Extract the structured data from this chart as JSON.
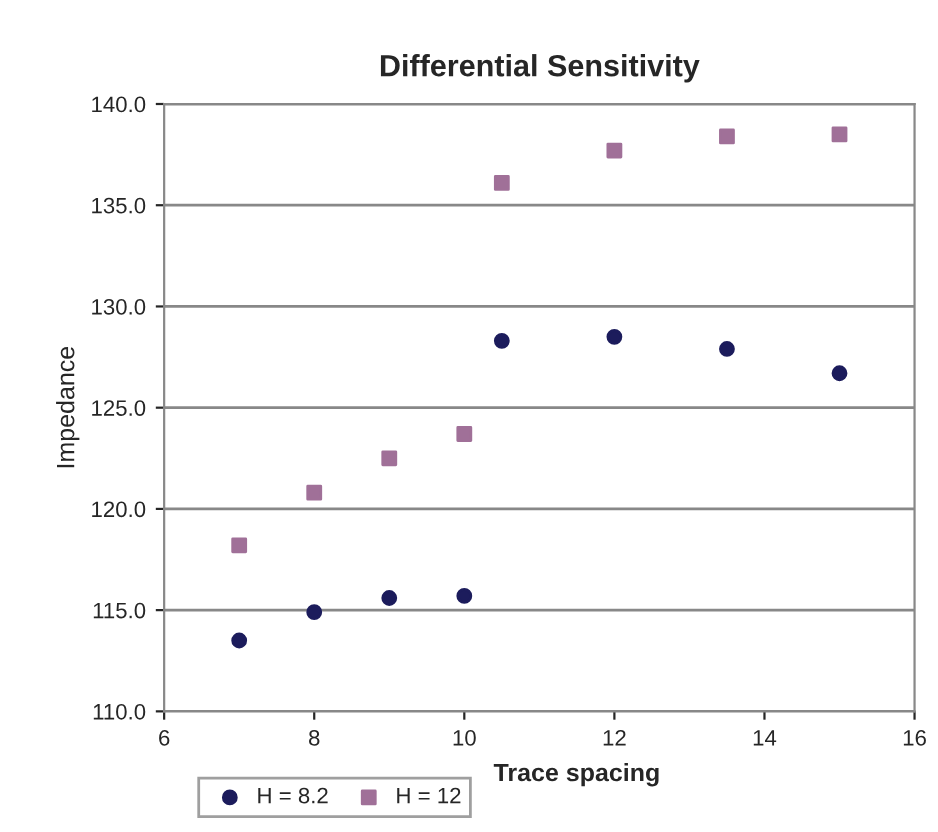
{
  "chart_data": {
    "type": "scatter",
    "title": "Differential Sensitivity",
    "xlabel": "Trace spacing",
    "ylabel": "Impedance",
    "series": [
      {
        "name": "H = 8.2",
        "color": "#1c1c5c",
        "marker": "circle",
        "x": [
          7,
          8,
          9,
          10,
          10.5,
          12,
          13.5,
          15
        ],
        "values": [
          113.5,
          114.9,
          115.6,
          115.7,
          128.3,
          128.5,
          127.9,
          126.7
        ]
      },
      {
        "name": "H = 12",
        "color": "#a07098",
        "marker": "square",
        "x": [
          7,
          8,
          9,
          10,
          10.5,
          12,
          13.5,
          15
        ],
        "values": [
          118.2,
          120.8,
          122.5,
          123.7,
          136.1,
          137.7,
          138.4,
          138.5
        ]
      }
    ],
    "xlim": [
      6,
      16
    ],
    "xticks": [
      6,
      8,
      10,
      12,
      14,
      16
    ],
    "ylim": [
      110,
      140
    ],
    "yticks": [
      {
        "value": 110,
        "label": "110.0"
      },
      {
        "value": 115,
        "label": "115.0"
      },
      {
        "value": 120,
        "label": "120.0"
      },
      {
        "value": 125,
        "label": "125.0"
      },
      {
        "value": 130,
        "label": "130.0"
      },
      {
        "value": 135,
        "label": "135.0"
      },
      {
        "value": 140,
        "label": "140.0"
      }
    ],
    "grid": "y",
    "legend": "bottom left"
  }
}
